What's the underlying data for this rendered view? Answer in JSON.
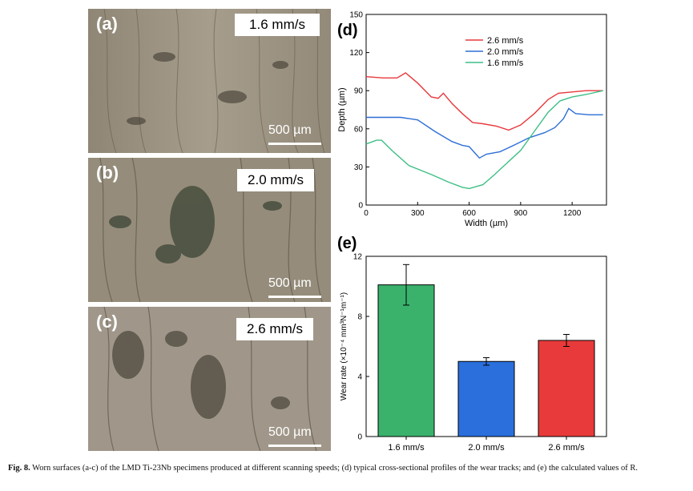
{
  "micrographs": [
    {
      "letter": "(a)",
      "speed": "1.6 mm/s",
      "scale": "500 µm"
    },
    {
      "letter": "(b)",
      "speed": "2.0 mm/s",
      "scale": "500 µm"
    },
    {
      "letter": "(c)",
      "speed": "2.6 mm/s",
      "scale": "500 µm"
    }
  ],
  "caption": {
    "label": "Fig. 8.",
    "text": "Worn surfaces (a-c) of the LMD Ti-23Nb specimens produced at different scanning speeds; (d) typical cross-sectional profiles of the wear tracks; and (e) the calculated values of R."
  },
  "chart_data": [
    {
      "type": "line",
      "panel": "(d)",
      "xlabel": "Width (µm)",
      "ylabel": "Depth (µm)",
      "xlim": [
        0,
        1400
      ],
      "ylim": [
        0,
        150
      ],
      "xticks": [
        0,
        300,
        600,
        900,
        1200
      ],
      "yticks": [
        0,
        30,
        60,
        90,
        120,
        150
      ],
      "legend": "top-center",
      "series": [
        {
          "name": "2.6 mm/s",
          "color": "#e8393c",
          "x": [
            0,
            100,
            180,
            230,
            300,
            380,
            420,
            450,
            500,
            560,
            620,
            680,
            760,
            830,
            900,
            980,
            1060,
            1120,
            1200,
            1280,
            1380
          ],
          "y": [
            101,
            100,
            100,
            104,
            96,
            85,
            84,
            88,
            80,
            72,
            65,
            64,
            62,
            59,
            63,
            72,
            83,
            88,
            89,
            90,
            90
          ]
        },
        {
          "name": "2.0 mm/s",
          "color": "#2e6fd6",
          "x": [
            0,
            100,
            200,
            300,
            400,
            500,
            560,
            600,
            640,
            660,
            700,
            780,
            860,
            950,
            1040,
            1100,
            1150,
            1180,
            1220,
            1300,
            1380
          ],
          "y": [
            69,
            69,
            69,
            67,
            58,
            50,
            47,
            46,
            40,
            37,
            40,
            42,
            47,
            53,
            57,
            61,
            68,
            76,
            72,
            71,
            71
          ]
        },
        {
          "name": "1.6 mm/s",
          "color": "#3dbf85",
          "x": [
            0,
            60,
            90,
            150,
            250,
            380,
            480,
            560,
            600,
            680,
            740,
            820,
            900,
            980,
            1060,
            1130,
            1200,
            1280,
            1380
          ],
          "y": [
            48,
            51,
            51,
            43,
            31,
            24,
            18,
            14,
            13,
            16,
            23,
            33,
            43,
            58,
            73,
            82,
            85,
            87,
            90
          ]
        }
      ]
    },
    {
      "type": "bar",
      "panel": "(e)",
      "ylabel": "Wear rate (×10⁻⁴ mm³N⁻¹m⁻¹)",
      "categories": [
        "1.6 mm/s",
        "2.0 mm/s",
        "2.6 mm/s"
      ],
      "values": [
        10.1,
        5.0,
        6.4
      ],
      "errors": [
        1.35,
        0.25,
        0.4
      ],
      "colors": [
        "#3ab26c",
        "#2a6fdc",
        "#e83a3a"
      ],
      "ylim": [
        0,
        12
      ],
      "yticks": [
        0,
        4,
        8,
        12
      ]
    }
  ]
}
